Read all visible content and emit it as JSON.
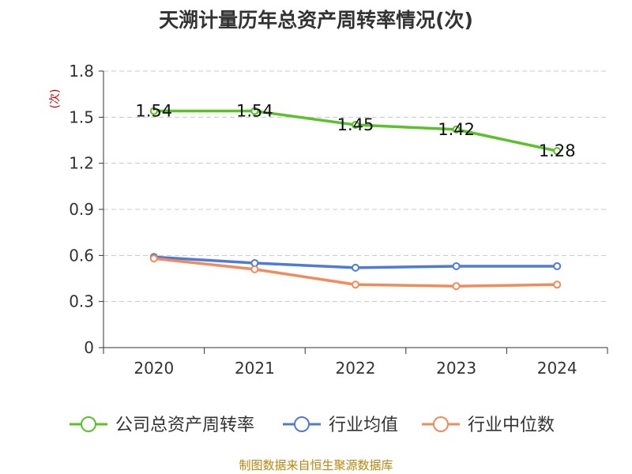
{
  "title": "天溯计量历年总资产周转率情况(次)",
  "source": "制图数据来自恒生聚源数据库",
  "chart_data": {
    "type": "line",
    "title": "天溯计量历年总资产周转率情况(次)",
    "ylabel": "(次)",
    "xlabel": "",
    "categories": [
      "2020",
      "2021",
      "2022",
      "2023",
      "2024"
    ],
    "ylim": [
      0,
      1.8
    ],
    "yticks": [
      0,
      0.3,
      0.6,
      0.9,
      1.2,
      1.5,
      1.8
    ],
    "ytick_labels": [
      "0",
      "0.3",
      "0.6",
      "0.9",
      "1.2",
      "1.5",
      "1.8"
    ],
    "grid": true,
    "legend_position": "bottom",
    "series": [
      {
        "name": "公司总资产周转率",
        "color": "#5ac229",
        "values": [
          1.54,
          1.54,
          1.45,
          1.42,
          1.28
        ],
        "labels": [
          "1.54",
          "1.54",
          "1.45",
          "1.42",
          "1.28"
        ]
      },
      {
        "name": "行业均值",
        "color": "#4e7ad8",
        "values": [
          0.59,
          0.55,
          0.52,
          0.53,
          0.53
        ]
      },
      {
        "name": "行业中位数",
        "color": "#f28b5a",
        "values": [
          0.58,
          0.51,
          0.41,
          0.4,
          0.41
        ]
      }
    ]
  }
}
